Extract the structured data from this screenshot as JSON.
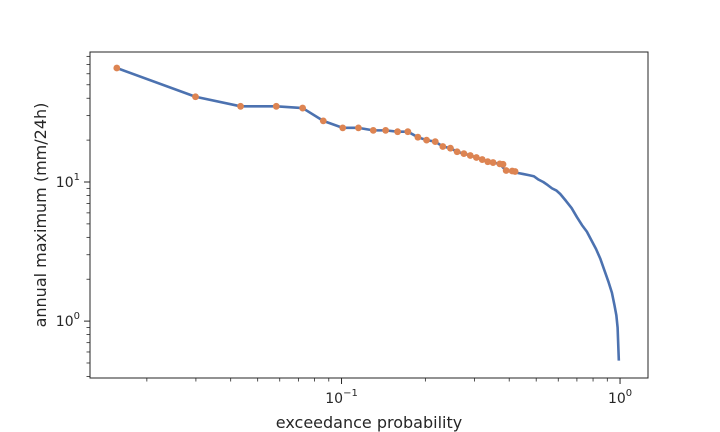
{
  "chart_data": {
    "type": "line",
    "title": "",
    "xlabel": "exceedance probability",
    "ylabel": "annual maximum (mm/24h)",
    "xscale": "log",
    "yscale": "log",
    "xlim": [
      0.0125,
      1.26
    ],
    "ylim": [
      0.39,
      86
    ],
    "grid": false,
    "legend": "none",
    "x_ticks": [
      {
        "value": 0.1,
        "base": "10",
        "exp": "−1"
      },
      {
        "value": 1,
        "base": "10",
        "exp": "0"
      }
    ],
    "y_ticks": [
      {
        "value": 1,
        "base": "10",
        "exp": "0"
      },
      {
        "value": 10,
        "base": "10",
        "exp": "1"
      }
    ],
    "colors": {
      "curve": "#4c72b0",
      "points": "#dd8452",
      "axes": "#262626"
    },
    "series": [
      {
        "kind": "curve",
        "x": [
          0.0156,
          0.0299,
          0.0434,
          0.0583,
          0.0725,
          0.086,
          0.101,
          0.115,
          0.13,
          0.144,
          0.159,
          0.173,
          0.188,
          0.202,
          0.217,
          0.231,
          0.246,
          0.26,
          0.275,
          0.29,
          0.305,
          0.32,
          0.335,
          0.35,
          0.37,
          0.39,
          0.41,
          0.43,
          0.45,
          0.47,
          0.49,
          0.51,
          0.53,
          0.55,
          0.57,
          0.59,
          0.61,
          0.64,
          0.67,
          0.7,
          0.73,
          0.76,
          0.79,
          0.82,
          0.85,
          0.88,
          0.91,
          0.935,
          0.955,
          0.97,
          0.98,
          0.99
        ],
        "y": [
          66,
          41,
          35,
          35,
          34,
          27.5,
          24.5,
          24.5,
          23.5,
          23.5,
          23,
          23,
          21,
          20,
          19.5,
          18,
          17.5,
          16.5,
          16,
          15.5,
          15,
          14.5,
          14,
          13.8,
          13.5,
          12,
          12,
          11.6,
          11.4,
          11.2,
          11,
          10.4,
          10,
          9.5,
          9.0,
          8.7,
          8.2,
          7.3,
          6.5,
          5.6,
          4.9,
          4.4,
          3.8,
          3.3,
          2.8,
          2.3,
          1.9,
          1.6,
          1.3,
          1.1,
          0.9,
          0.52
        ]
      },
      {
        "kind": "points",
        "x": [
          0.0156,
          0.0299,
          0.0434,
          0.0583,
          0.0725,
          0.086,
          0.101,
          0.115,
          0.13,
          0.144,
          0.159,
          0.173,
          0.188,
          0.202,
          0.217,
          0.231,
          0.246,
          0.26,
          0.275,
          0.29,
          0.305,
          0.32,
          0.335,
          0.35,
          0.37,
          0.38,
          0.39,
          0.41,
          0.42
        ],
        "y": [
          66,
          41,
          35,
          35,
          34,
          27.5,
          24.5,
          24.5,
          23.5,
          23.5,
          23,
          23,
          21,
          20,
          19.5,
          18,
          17.5,
          16.5,
          16,
          15.5,
          15,
          14.5,
          14,
          13.8,
          13.5,
          13.4,
          12.1,
          12,
          11.9
        ]
      }
    ]
  }
}
